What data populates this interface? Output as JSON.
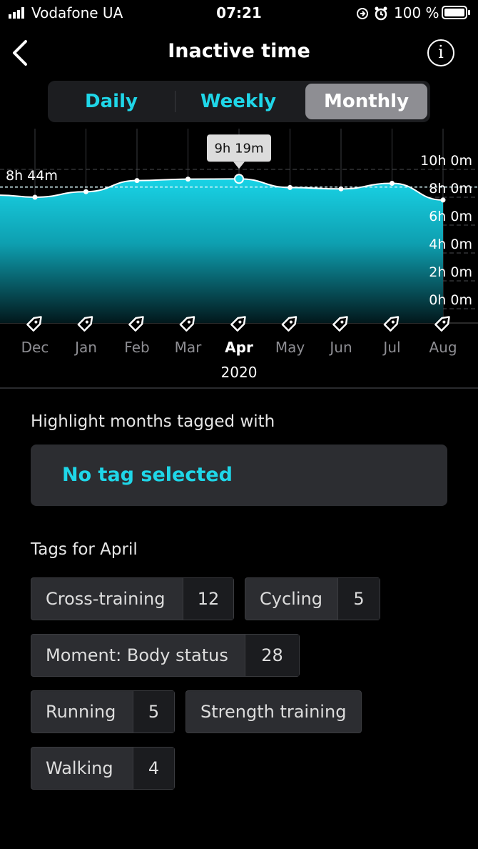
{
  "status_bar": {
    "carrier": "Vodafone UA",
    "time": "07:21",
    "battery": "100 %"
  },
  "header": {
    "title": "Inactive time",
    "info_glyph": "i"
  },
  "tabs": [
    {
      "label": "Daily",
      "active": false
    },
    {
      "label": "Weekly",
      "active": false
    },
    {
      "label": "Monthly",
      "active": true
    }
  ],
  "chart_data": {
    "type": "area",
    "categories": [
      "Dec",
      "Jan",
      "Feb",
      "Mar",
      "Apr",
      "May",
      "Jun",
      "Jul",
      "Aug"
    ],
    "values_hours": [
      8.0,
      8.4,
      9.2,
      9.3,
      9.32,
      8.7,
      8.6,
      9.0,
      7.8
    ],
    "ylim": [
      0,
      10
    ],
    "y_ticks": [
      "10h 0m",
      "8h 0m",
      "6h 0m",
      "4h 0m",
      "2h 0m",
      "0h 0m"
    ],
    "year_label": "2020",
    "average_label": "8h 44m",
    "average_hours": 8.73,
    "selected_index": 4,
    "tooltip": "9h 19m",
    "accent": "#1fd6e8"
  },
  "highlight": {
    "label": "Highlight months tagged with",
    "value": "No tag selected"
  },
  "tags": {
    "label": "Tags for April",
    "items": [
      {
        "name": "Cross-training",
        "count": "12"
      },
      {
        "name": "Cycling",
        "count": "5"
      },
      {
        "name": "Moment: Body status",
        "count": "28"
      },
      {
        "name": "Running",
        "count": "5"
      },
      {
        "name": "Strength training",
        "count": ""
      },
      {
        "name": "Walking",
        "count": "4"
      }
    ]
  }
}
